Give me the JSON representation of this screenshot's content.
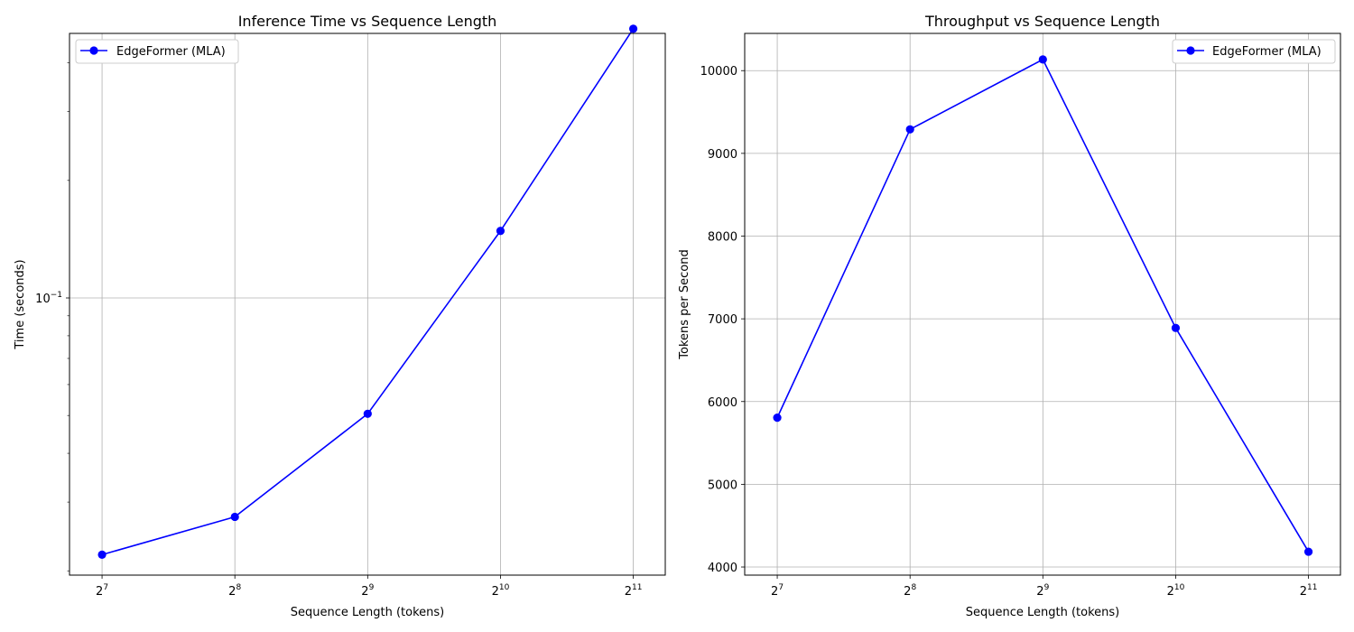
{
  "chart_data": [
    {
      "type": "line",
      "title": "Inference Time vs Sequence Length",
      "xlabel": "Sequence Length (tokens)",
      "ylabel": "Time (seconds)",
      "xscale": "log2",
      "yscale": "log10",
      "x": [
        128,
        256,
        512,
        1024,
        2048
      ],
      "x_ticks": [
        {
          "base": "2",
          "exp": "7"
        },
        {
          "base": "2",
          "exp": "8"
        },
        {
          "base": "2",
          "exp": "9"
        },
        {
          "base": "2",
          "exp": "10"
        },
        {
          "base": "2",
          "exp": "11"
        }
      ],
      "y_ticks": [
        {
          "base": "10",
          "exp": "−1"
        }
      ],
      "xlim": [
        108,
        2420
      ],
      "ylim": [
        0.0195,
        0.476
      ],
      "series": [
        {
          "name": "EdgeFormer (MLA)",
          "color": "#0000ff",
          "values": [
            0.022,
            0.0275,
            0.0505,
            0.1485,
            0.4892
          ]
        }
      ],
      "legend": "upper-left",
      "grid": true
    },
    {
      "type": "line",
      "title": "Throughput vs Sequence Length",
      "xlabel": "Sequence Length (tokens)",
      "ylabel": "Tokens per Second",
      "xscale": "log2",
      "yscale": "linear",
      "x": [
        128,
        256,
        512,
        1024,
        2048
      ],
      "x_ticks": [
        {
          "base": "2",
          "exp": "7"
        },
        {
          "base": "2",
          "exp": "8"
        },
        {
          "base": "2",
          "exp": "9"
        },
        {
          "base": "2",
          "exp": "10"
        },
        {
          "base": "2",
          "exp": "11"
        }
      ],
      "y_ticks": [
        4000,
        5000,
        6000,
        7000,
        8000,
        9000,
        10000
      ],
      "xlim": [
        108,
        2420
      ],
      "ylim": [
        3902,
        10450
      ],
      "series": [
        {
          "name": "EdgeFormer (MLA)",
          "color": "#0000ff",
          "values": [
            5805,
            9290,
            10135,
            6890,
            4185
          ]
        }
      ],
      "legend": "upper-right",
      "grid": true
    }
  ]
}
